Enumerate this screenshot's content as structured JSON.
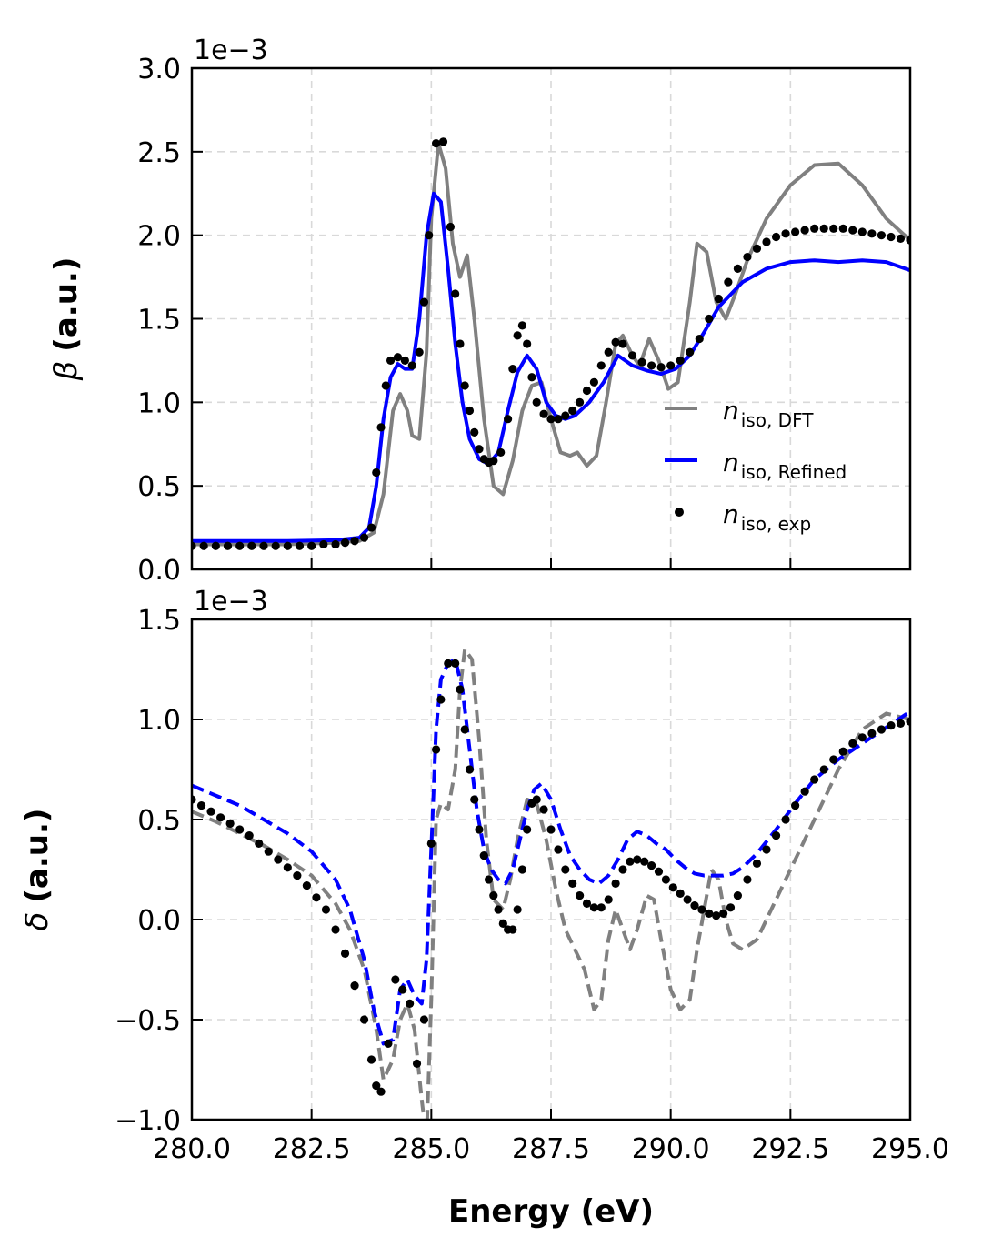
{
  "chart_data": [
    {
      "type": "line",
      "panel": "top",
      "ylabel": "β (a.u.)",
      "ylabel_symbol": "β",
      "ylabel_unit": "(a.u.)",
      "xlabel": "",
      "offset_text": "1e−3",
      "xlim": [
        280,
        295
      ],
      "ylim": [
        0,
        3.0
      ],
      "y_scale_note": "values in units of 1e-3",
      "xticks": [
        280,
        282.5,
        285,
        287.5,
        290,
        292.5,
        295
      ],
      "yticks": [
        "0.0",
        "0.5",
        "1.0",
        "1.5",
        "2.0",
        "2.5",
        "3.0"
      ],
      "ytick_values": [
        0,
        0.5,
        1.0,
        1.5,
        2.0,
        2.5,
        3.0
      ],
      "grid": true,
      "legend": {
        "placement": "lower-right",
        "entries": [
          {
            "base": "n",
            "sub": "iso, DFT",
            "color": "#808080",
            "style": "solid-line"
          },
          {
            "base": "n",
            "sub": "iso, Refined",
            "color": "#0000ff",
            "style": "solid-line"
          },
          {
            "base": "n",
            "sub": "iso, exp",
            "color": "#000000",
            "style": "dots"
          }
        ]
      },
      "series": [
        {
          "name": "n_iso,DFT",
          "color": "#808080",
          "style": "solid",
          "x": [
            280,
            282,
            283,
            283.5,
            283.8,
            284.0,
            284.2,
            284.35,
            284.5,
            284.6,
            284.75,
            284.9,
            285.0,
            285.15,
            285.3,
            285.45,
            285.6,
            285.75,
            285.9,
            286.1,
            286.3,
            286.5,
            286.7,
            286.9,
            287.1,
            287.3,
            287.5,
            287.7,
            287.9,
            288.05,
            288.25,
            288.45,
            288.65,
            288.85,
            289.0,
            289.2,
            289.35,
            289.55,
            289.75,
            289.95,
            290.15,
            290.4,
            290.55,
            290.75,
            290.95,
            291.15,
            291.35,
            291.6,
            292.0,
            292.5,
            293.0,
            293.5,
            294.0,
            294.5,
            295
          ],
          "y": [
            0.15,
            0.15,
            0.16,
            0.17,
            0.22,
            0.45,
            0.95,
            1.05,
            0.95,
            0.8,
            0.78,
            1.3,
            2.1,
            2.55,
            2.4,
            1.95,
            1.75,
            1.88,
            1.5,
            0.9,
            0.5,
            0.45,
            0.65,
            0.95,
            1.1,
            1.12,
            0.9,
            0.7,
            0.68,
            0.7,
            0.62,
            0.68,
            1.0,
            1.35,
            1.4,
            1.28,
            1.22,
            1.38,
            1.25,
            1.08,
            1.12,
            1.6,
            1.95,
            1.9,
            1.6,
            1.5,
            1.65,
            1.85,
            2.1,
            2.3,
            2.42,
            2.43,
            2.3,
            2.1,
            1.97
          ]
        },
        {
          "name": "n_iso,Refined",
          "color": "#0000ff",
          "style": "solid",
          "x": [
            280,
            282,
            283,
            283.5,
            283.7,
            283.85,
            284.0,
            284.15,
            284.3,
            284.45,
            284.6,
            284.75,
            284.9,
            285.05,
            285.2,
            285.35,
            285.5,
            285.65,
            285.8,
            286.0,
            286.2,
            286.4,
            286.6,
            286.8,
            287.0,
            287.2,
            287.4,
            287.6,
            287.8,
            288.0,
            288.3,
            288.6,
            288.9,
            289.2,
            289.5,
            289.8,
            290.1,
            290.4,
            290.7,
            291.0,
            291.5,
            292.0,
            292.5,
            293.0,
            293.5,
            294.0,
            294.5,
            295
          ],
          "y": [
            0.17,
            0.17,
            0.175,
            0.19,
            0.25,
            0.5,
            0.9,
            1.15,
            1.23,
            1.2,
            1.2,
            1.5,
            2.0,
            2.25,
            2.2,
            1.8,
            1.35,
            1.0,
            0.78,
            0.66,
            0.63,
            0.7,
            0.95,
            1.18,
            1.28,
            1.2,
            1.0,
            0.92,
            0.9,
            0.92,
            1.0,
            1.12,
            1.28,
            1.22,
            1.19,
            1.17,
            1.2,
            1.28,
            1.42,
            1.57,
            1.72,
            1.8,
            1.84,
            1.85,
            1.84,
            1.85,
            1.84,
            1.79
          ]
        },
        {
          "name": "n_iso,exp",
          "color": "#000000",
          "style": "dots",
          "x": [
            280,
            280.25,
            280.5,
            280.75,
            281,
            281.25,
            281.5,
            281.75,
            282,
            282.25,
            282.5,
            282.75,
            283,
            283.2,
            283.4,
            283.6,
            283.75,
            283.85,
            283.95,
            284.05,
            284.15,
            284.3,
            284.45,
            284.6,
            284.75,
            284.85,
            284.95,
            285.1,
            285.25,
            285.4,
            285.5,
            285.6,
            285.7,
            285.8,
            285.9,
            286.0,
            286.1,
            286.2,
            286.3,
            286.45,
            286.6,
            286.7,
            286.8,
            286.9,
            287.0,
            287.1,
            287.2,
            287.35,
            287.5,
            287.65,
            287.8,
            287.95,
            288.1,
            288.25,
            288.4,
            288.55,
            288.7,
            288.85,
            289.0,
            289.2,
            289.4,
            289.6,
            289.8,
            290.0,
            290.2,
            290.4,
            290.6,
            290.8,
            291.0,
            291.2,
            291.4,
            291.6,
            291.8,
            292.0,
            292.2,
            292.4,
            292.6,
            292.8,
            293.0,
            293.2,
            293.4,
            293.6,
            293.8,
            294.0,
            294.2,
            294.4,
            294.6,
            294.8,
            295
          ],
          "y": [
            0.14,
            0.14,
            0.14,
            0.14,
            0.14,
            0.14,
            0.14,
            0.14,
            0.14,
            0.14,
            0.14,
            0.15,
            0.15,
            0.16,
            0.17,
            0.19,
            0.25,
            0.58,
            0.85,
            1.1,
            1.25,
            1.27,
            1.25,
            1.22,
            1.3,
            1.6,
            2.0,
            2.55,
            2.56,
            2.05,
            1.65,
            1.35,
            1.1,
            0.95,
            0.82,
            0.72,
            0.66,
            0.64,
            0.65,
            0.7,
            0.9,
            1.2,
            1.4,
            1.46,
            1.35,
            1.15,
            1.0,
            0.93,
            0.9,
            0.9,
            0.92,
            0.95,
            1.0,
            1.07,
            1.12,
            1.22,
            1.3,
            1.36,
            1.35,
            1.28,
            1.24,
            1.22,
            1.21,
            1.22,
            1.25,
            1.3,
            1.38,
            1.5,
            1.62,
            1.72,
            1.8,
            1.87,
            1.92,
            1.96,
            1.99,
            2.01,
            2.02,
            2.03,
            2.04,
            2.04,
            2.04,
            2.04,
            2.03,
            2.02,
            2.01,
            2.0,
            1.99,
            1.98,
            1.97
          ]
        }
      ]
    },
    {
      "type": "line",
      "panel": "bottom",
      "ylabel": "δ (a.u.)",
      "ylabel_symbol": "δ",
      "ylabel_unit": "(a.u.)",
      "xlabel": "Energy (eV)",
      "offset_text": "1e−3",
      "xlim": [
        280,
        295
      ],
      "ylim": [
        -1.0,
        1.5
      ],
      "y_scale_note": "values in units of 1e-3",
      "xticks": [
        280,
        282.5,
        285,
        287.5,
        290,
        292.5,
        295
      ],
      "xtick_labels": [
        "280.0",
        "282.5",
        "285.0",
        "287.5",
        "290.0",
        "292.5",
        "295.0"
      ],
      "yticks": [
        "−1.0",
        "−0.5",
        "0.0",
        "0.5",
        "1.0",
        "1.5"
      ],
      "ytick_values": [
        -1.0,
        -0.5,
        0.0,
        0.5,
        1.0,
        1.5
      ],
      "grid": true,
      "series": [
        {
          "name": "n_iso,DFT",
          "color": "#808080",
          "style": "dashed",
          "x": [
            280,
            280.5,
            281,
            281.5,
            282,
            282.5,
            283,
            283.3,
            283.6,
            283.85,
            284.0,
            284.2,
            284.35,
            284.5,
            284.65,
            284.8,
            284.9,
            285.0,
            285.1,
            285.2,
            285.35,
            285.5,
            285.6,
            285.7,
            285.85,
            286.0,
            286.15,
            286.3,
            286.5,
            286.65,
            286.8,
            287.0,
            287.2,
            287.4,
            287.6,
            287.8,
            288.0,
            288.2,
            288.4,
            288.55,
            288.7,
            288.85,
            289.0,
            289.15,
            289.3,
            289.5,
            289.65,
            289.8,
            290.0,
            290.2,
            290.4,
            290.55,
            290.7,
            290.85,
            291.0,
            291.15,
            291.3,
            291.5,
            291.8,
            292.2,
            292.6,
            293.0,
            293.5,
            294.0,
            294.5,
            295
          ],
          "y": [
            0.54,
            0.49,
            0.43,
            0.37,
            0.3,
            0.22,
            0.08,
            -0.05,
            -0.25,
            -0.55,
            -0.8,
            -0.7,
            -0.5,
            -0.42,
            -0.55,
            -0.9,
            -1.1,
            -0.4,
            0.5,
            0.58,
            0.55,
            0.75,
            1.15,
            1.35,
            1.3,
            0.9,
            0.4,
            0.1,
            0.05,
            0.2,
            0.4,
            0.6,
            0.58,
            0.4,
            0.15,
            -0.05,
            -0.15,
            -0.25,
            -0.45,
            -0.4,
            -0.1,
            0.05,
            -0.05,
            -0.15,
            -0.05,
            0.12,
            0.1,
            -0.1,
            -0.35,
            -0.45,
            -0.4,
            -0.15,
            0.05,
            0.25,
            0.2,
            0.0,
            -0.12,
            -0.15,
            -0.1,
            0.1,
            0.3,
            0.5,
            0.75,
            0.95,
            1.03,
            1.0
          ]
        },
        {
          "name": "n_iso,Refined",
          "color": "#0000ff",
          "style": "dashed",
          "x": [
            280,
            280.5,
            281,
            281.5,
            282,
            282.5,
            283,
            283.3,
            283.6,
            283.8,
            284.0,
            284.2,
            284.35,
            284.5,
            284.65,
            284.8,
            284.9,
            285.0,
            285.1,
            285.2,
            285.35,
            285.5,
            285.65,
            285.8,
            285.95,
            286.1,
            286.25,
            286.4,
            286.55,
            286.7,
            286.85,
            287.0,
            287.15,
            287.3,
            287.5,
            287.7,
            287.9,
            288.1,
            288.3,
            288.5,
            288.7,
            288.9,
            289.1,
            289.3,
            289.5,
            289.7,
            289.9,
            290.1,
            290.3,
            290.5,
            290.7,
            290.9,
            291.1,
            291.3,
            291.5,
            291.8,
            292.2,
            292.6,
            293.0,
            293.5,
            294.0,
            294.5,
            295
          ],
          "y": [
            0.67,
            0.62,
            0.57,
            0.5,
            0.43,
            0.34,
            0.2,
            0.05,
            -0.2,
            -0.45,
            -0.62,
            -0.6,
            -0.35,
            -0.3,
            -0.38,
            -0.42,
            -0.2,
            0.35,
            0.95,
            1.2,
            1.28,
            1.3,
            1.15,
            0.85,
            0.55,
            0.35,
            0.25,
            0.2,
            0.18,
            0.25,
            0.4,
            0.55,
            0.65,
            0.68,
            0.6,
            0.45,
            0.32,
            0.25,
            0.2,
            0.18,
            0.22,
            0.3,
            0.4,
            0.44,
            0.42,
            0.38,
            0.35,
            0.3,
            0.26,
            0.23,
            0.22,
            0.22,
            0.22,
            0.23,
            0.26,
            0.33,
            0.45,
            0.58,
            0.7,
            0.8,
            0.88,
            0.96,
            1.04
          ]
        },
        {
          "name": "n_iso,exp",
          "color": "#000000",
          "style": "dots",
          "x": [
            280,
            280.2,
            280.4,
            280.6,
            280.8,
            281,
            281.2,
            281.4,
            281.6,
            281.8,
            282,
            282.2,
            282.4,
            282.6,
            282.8,
            283,
            283.2,
            283.4,
            283.6,
            283.75,
            283.85,
            283.95,
            284.1,
            284.25,
            284.4,
            284.55,
            284.7,
            284.85,
            285.0,
            285.1,
            285.2,
            285.35,
            285.5,
            285.6,
            285.7,
            285.8,
            285.9,
            286.0,
            286.1,
            286.2,
            286.3,
            286.4,
            286.5,
            286.6,
            286.7,
            286.8,
            286.9,
            287.0,
            287.1,
            287.2,
            287.35,
            287.5,
            287.65,
            287.8,
            287.95,
            288.1,
            288.25,
            288.4,
            288.55,
            288.7,
            288.85,
            289.0,
            289.15,
            289.3,
            289.45,
            289.6,
            289.75,
            289.9,
            290.05,
            290.2,
            290.35,
            290.5,
            290.65,
            290.8,
            290.95,
            291.1,
            291.25,
            291.4,
            291.6,
            291.8,
            292.0,
            292.2,
            292.4,
            292.6,
            292.8,
            293.0,
            293.2,
            293.4,
            293.6,
            293.8,
            294.0,
            294.2,
            294.4,
            294.6,
            294.8,
            295
          ],
          "y": [
            0.6,
            0.57,
            0.54,
            0.51,
            0.48,
            0.45,
            0.42,
            0.38,
            0.34,
            0.3,
            0.26,
            0.22,
            0.17,
            0.11,
            0.05,
            -0.05,
            -0.17,
            -0.33,
            -0.5,
            -0.7,
            -0.83,
            -0.86,
            -0.62,
            -0.3,
            -0.35,
            -0.42,
            -0.72,
            -0.5,
            0.38,
            0.85,
            1.1,
            1.28,
            1.28,
            1.15,
            0.95,
            0.75,
            0.6,
            0.45,
            0.32,
            0.2,
            0.12,
            0.05,
            -0.02,
            -0.05,
            -0.05,
            0.05,
            0.25,
            0.45,
            0.58,
            0.6,
            0.55,
            0.45,
            0.35,
            0.25,
            0.18,
            0.12,
            0.08,
            0.06,
            0.06,
            0.1,
            0.18,
            0.25,
            0.29,
            0.3,
            0.29,
            0.27,
            0.24,
            0.2,
            0.16,
            0.13,
            0.1,
            0.07,
            0.05,
            0.03,
            0.02,
            0.03,
            0.06,
            0.12,
            0.2,
            0.28,
            0.35,
            0.42,
            0.5,
            0.57,
            0.64,
            0.7,
            0.75,
            0.8,
            0.84,
            0.88,
            0.91,
            0.93,
            0.95,
            0.97,
            0.98,
            0.99
          ]
        }
      ]
    }
  ]
}
